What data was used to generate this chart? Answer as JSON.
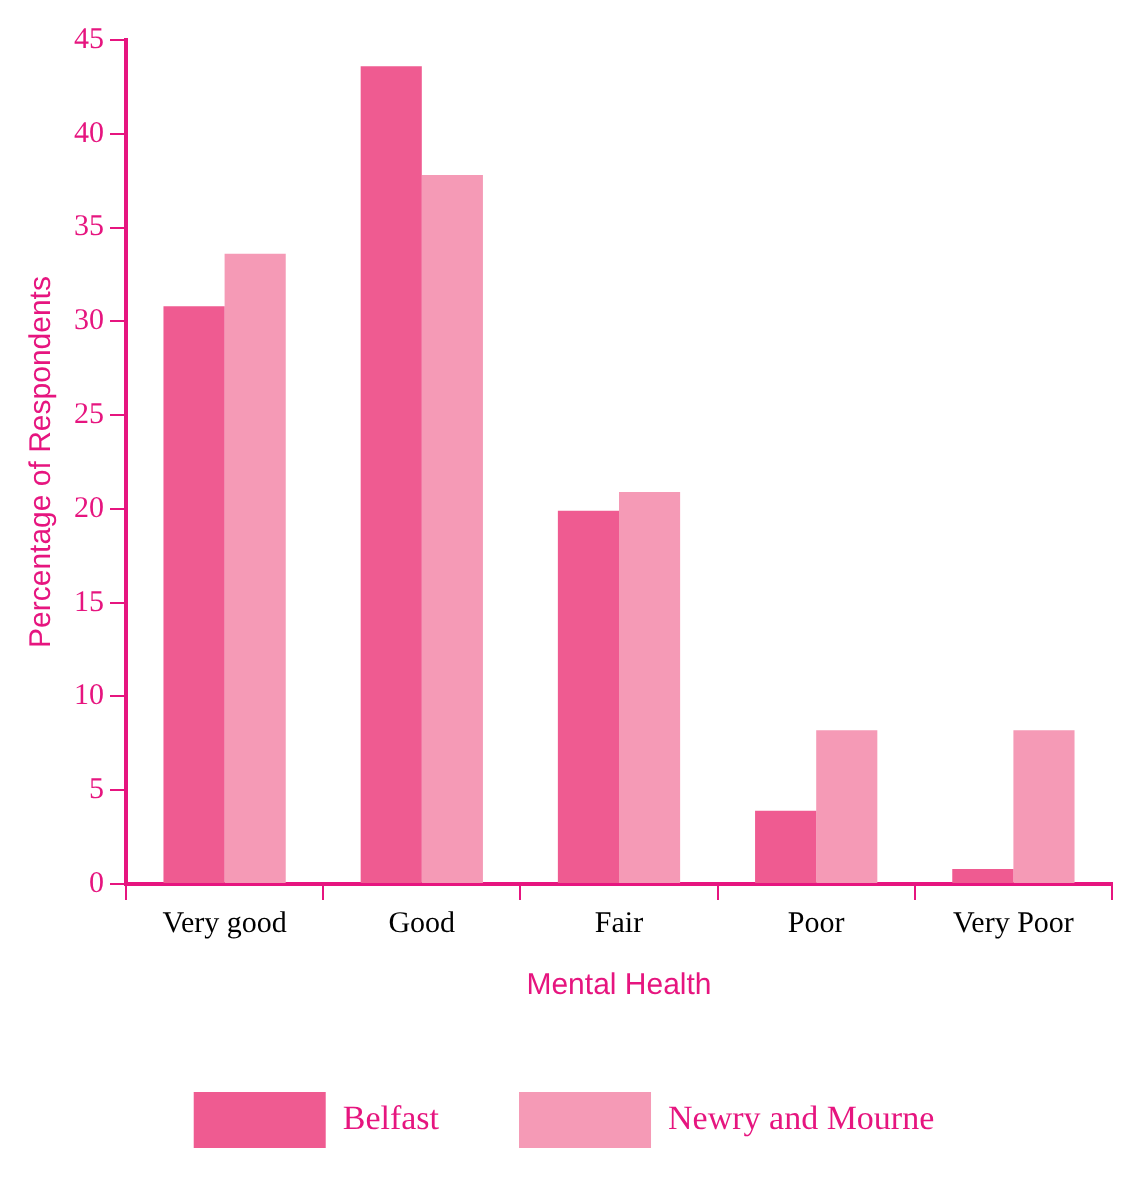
{
  "chart_data": {
    "type": "bar",
    "xlabel": "Mental Health",
    "ylabel": "Percentage of Respondents",
    "categories": [
      "Very good",
      "Good",
      "Fair",
      "Poor",
      "Very Poor"
    ],
    "series": [
      {
        "name": "Belfast",
        "color": "#ef5b91",
        "values": [
          30.8,
          43.6,
          19.9,
          3.9,
          0.8
        ]
      },
      {
        "name": "Newry and Mourne",
        "color": "#f59ab6",
        "values": [
          33.6,
          37.8,
          20.9,
          8.2,
          8.2
        ]
      }
    ],
    "ylim": [
      0,
      45
    ],
    "yticks": [
      0,
      5,
      10,
      15,
      20,
      25,
      30,
      35,
      40,
      45
    ],
    "grid": false,
    "legend": "bottom"
  }
}
